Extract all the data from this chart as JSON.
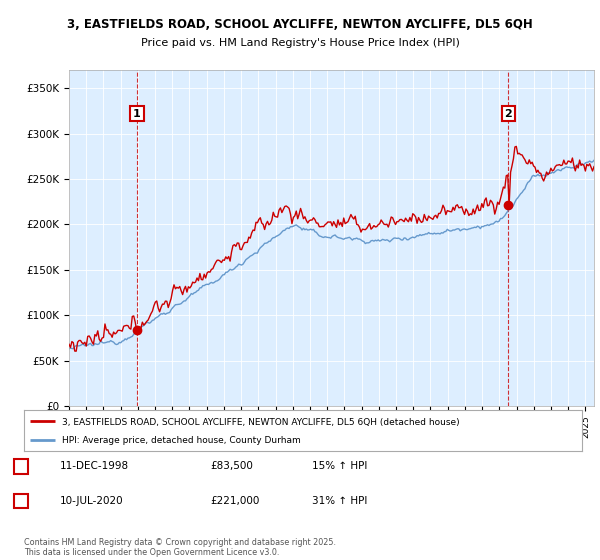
{
  "title1": "3, EASTFIELDS ROAD, SCHOOL AYCLIFFE, NEWTON AYCLIFFE, DL5 6QH",
  "title2": "Price paid vs. HM Land Registry's House Price Index (HPI)",
  "ylim": [
    0,
    370000
  ],
  "yticks": [
    0,
    50000,
    100000,
    150000,
    200000,
    250000,
    300000,
    350000
  ],
  "ytick_labels": [
    "£0",
    "£50K",
    "£100K",
    "£150K",
    "£200K",
    "£250K",
    "£300K",
    "£350K"
  ],
  "xlim_start": 1995.0,
  "xlim_end": 2025.5,
  "purchase1_x": 1998.95,
  "purchase1_y": 83500,
  "purchase1_label": "1",
  "purchase2_x": 2020.53,
  "purchase2_y": 221000,
  "purchase2_label": "2",
  "legend_line1": "3, EASTFIELDS ROAD, SCHOOL AYCLIFFE, NEWTON AYCLIFFE, DL5 6QH (detached house)",
  "legend_line2": "HPI: Average price, detached house, County Durham",
  "annotation1_date": "11-DEC-1998",
  "annotation1_price": "£83,500",
  "annotation1_hpi": "15% ↑ HPI",
  "annotation2_date": "10-JUL-2020",
  "annotation2_price": "£221,000",
  "annotation2_hpi": "31% ↑ HPI",
  "footer": "Contains HM Land Registry data © Crown copyright and database right 2025.\nThis data is licensed under the Open Government Licence v3.0.",
  "line_color_red": "#cc0000",
  "line_color_blue": "#6699cc",
  "plot_bg_color": "#ddeeff",
  "grid_color": "#ffffff",
  "background_color": "#ffffff"
}
